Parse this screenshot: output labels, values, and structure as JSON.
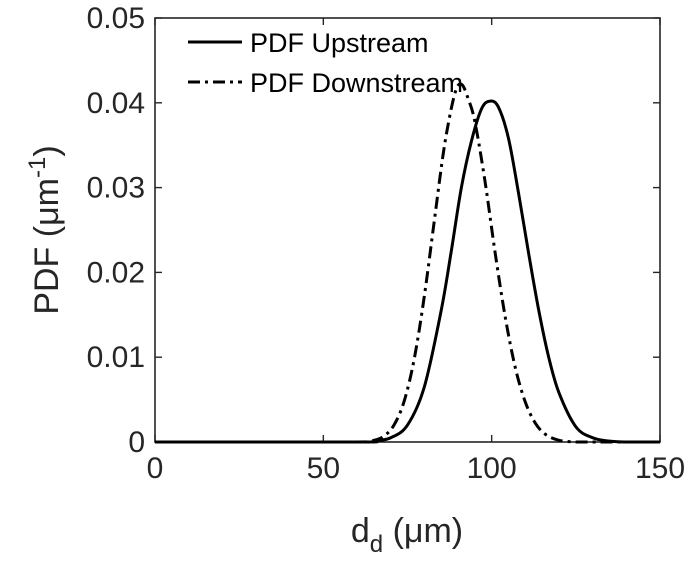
{
  "chart_data": {
    "type": "line",
    "xlabel": "d",
    "xlabel_sub": "d",
    "xlabel_unit": " (μm)",
    "ylabel": "PDF (μm",
    "ylabel_sup": "-1",
    "ylabel_close": ")",
    "xlim": [
      0,
      150
    ],
    "ylim": [
      0,
      0.05
    ],
    "x_ticks": [
      "0",
      "50",
      "100",
      "150"
    ],
    "y_ticks": [
      "0",
      "0.01",
      "0.02",
      "0.03",
      "0.04",
      "0.05"
    ],
    "grid": false,
    "legend_position": "top-left",
    "series": [
      {
        "name": "PDF Upstream",
        "style": "solid",
        "color": "#000000",
        "x": [
          0,
          60,
          65,
          70,
          75,
          80,
          85,
          88,
          91,
          94,
          97,
          99.5,
          102,
          105,
          108,
          111,
          114,
          117,
          120,
          125,
          130,
          135,
          140,
          150
        ],
        "y": [
          0,
          0,
          0.0001,
          0.0005,
          0.002,
          0.0065,
          0.0155,
          0.0225,
          0.03,
          0.0355,
          0.0393,
          0.0402,
          0.0395,
          0.0358,
          0.0293,
          0.0222,
          0.0155,
          0.0099,
          0.0058,
          0.0018,
          0.0005,
          0.0001,
          0,
          0
        ]
      },
      {
        "name": "PDF Downstream",
        "style": "dashdot",
        "color": "#000000",
        "x": [
          0,
          60,
          65,
          68,
          71,
          74,
          77,
          80,
          83,
          86,
          89,
          91,
          93,
          95,
          98,
          101,
          104,
          107,
          110,
          113,
          116,
          120,
          125,
          130,
          135,
          150
        ],
        "y": [
          0,
          0,
          0.0002,
          0.0007,
          0.002,
          0.0048,
          0.0098,
          0.0172,
          0.0262,
          0.035,
          0.041,
          0.0422,
          0.0405,
          0.0378,
          0.0308,
          0.0224,
          0.0148,
          0.0088,
          0.0047,
          0.0022,
          0.0009,
          0.0002,
          0,
          0,
          0,
          0
        ]
      }
    ]
  }
}
